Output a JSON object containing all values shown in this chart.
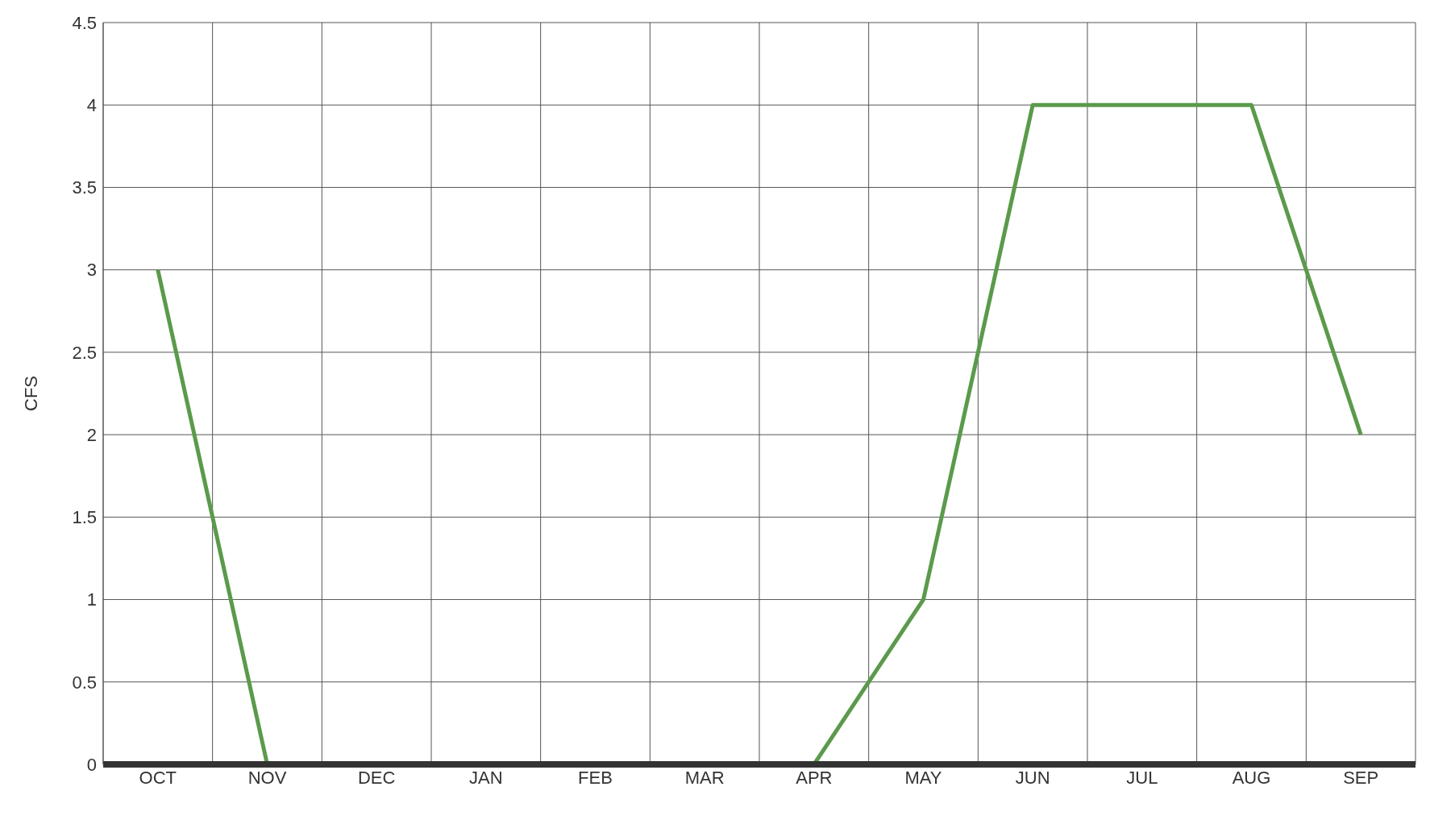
{
  "chart_data": {
    "type": "line",
    "ylabel": "CFS",
    "categories": [
      "OCT",
      "NOV",
      "DEC",
      "JAN",
      "FEB",
      "MAR",
      "APR",
      "MAY",
      "JUN",
      "JUL",
      "AUG",
      "SEP"
    ],
    "series": [
      {
        "color": "#5b9a4c",
        "values": [
          3,
          0,
          0,
          0,
          0,
          0,
          0,
          1,
          4,
          4,
          4,
          2
        ]
      }
    ],
    "ylim": [
      0,
      4.5
    ],
    "yticks": [
      0,
      0.5,
      1,
      1.5,
      2,
      2.5,
      3,
      3.5,
      4,
      4.5
    ],
    "grid": true,
    "legend": false,
    "marker": "none",
    "line_style": "solid"
  }
}
